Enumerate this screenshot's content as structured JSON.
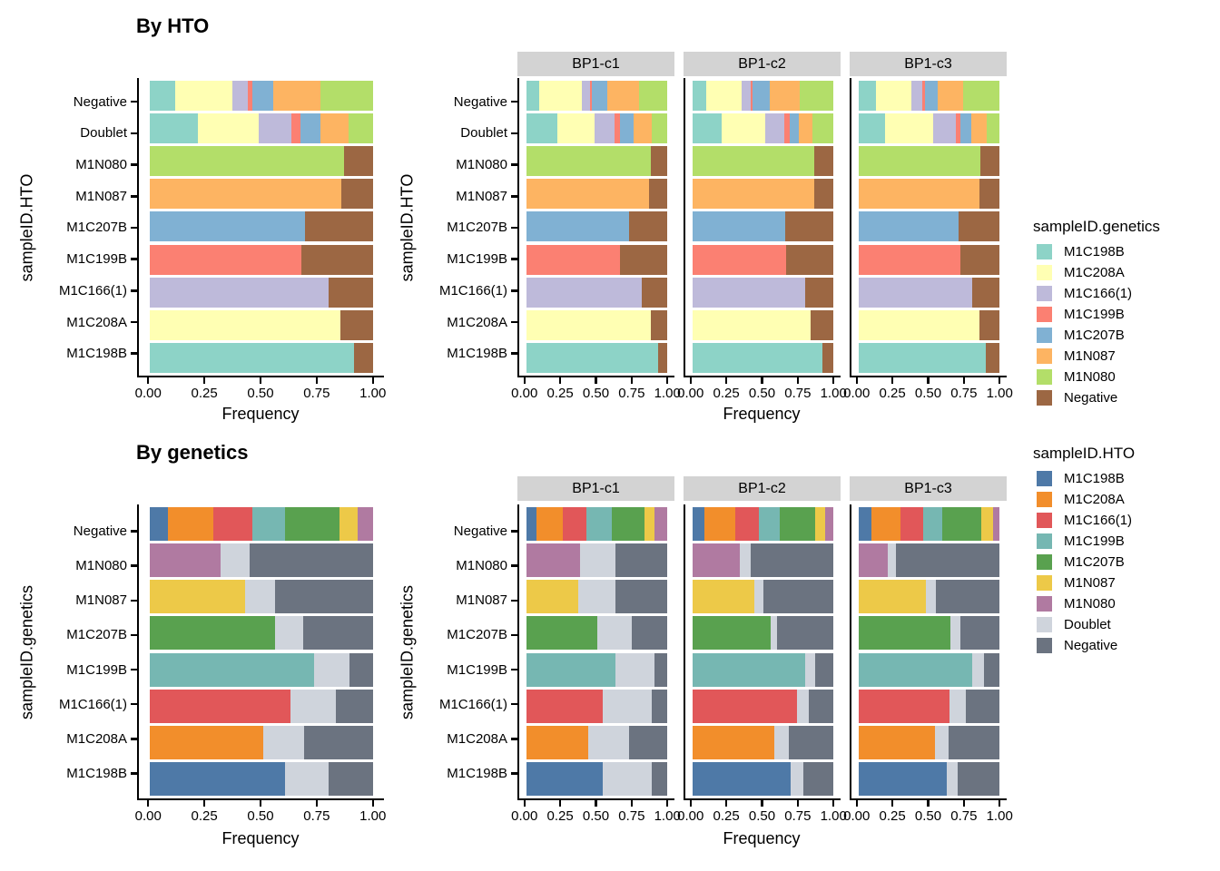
{
  "titles": {
    "top": "By HTO",
    "bottom": "By genetics"
  },
  "axis": {
    "x_label": "Frequency",
    "x_ticks": [
      "0.00",
      "0.25",
      "0.50",
      "0.75",
      "1.00"
    ]
  },
  "palettes": {
    "genetics": {
      "M1C198B": "#8DD3C7",
      "M1C208A": "#FFFFB3",
      "M1C166(1)": "#BEBADA",
      "M1C199B": "#FB8072",
      "M1C207B": "#80B1D3",
      "M1N087": "#FDB462",
      "M1N080": "#B3DE69",
      "Negative": "#9C6743"
    },
    "hto": {
      "M1C198B": "#4E79A7",
      "M1C208A": "#F28E2B",
      "M1C166(1)": "#E15759",
      "M1C199B": "#76B7B2",
      "M1C207B": "#59A14F",
      "M1N087": "#EDC948",
      "M1N080": "#B07AA1",
      "Doublet": "#CFD4DC",
      "Negative": "#6B7380"
    }
  },
  "legends": [
    {
      "title": "sampleID.genetics",
      "palette": "genetics",
      "items": [
        "M1C198B",
        "M1C208A",
        "M1C166(1)",
        "M1C199B",
        "M1C207B",
        "M1N087",
        "M1N080",
        "Negative"
      ]
    },
    {
      "title": "sampleID.HTO",
      "palette": "hto",
      "items": [
        "M1C198B",
        "M1C208A",
        "M1C166(1)",
        "M1C199B",
        "M1C207B",
        "M1N087",
        "M1N080",
        "Doublet",
        "Negative"
      ]
    }
  ],
  "chart_data": [
    {
      "id": "by_hto",
      "type": "bar",
      "orientation": "horizontal",
      "stacked": true,
      "normalized": true,
      "title": "By HTO",
      "ylabel": "sampleID.HTO",
      "xlabel": "Frequency",
      "xlim": [
        0,
        1
      ],
      "x_ticks": [
        0,
        0.25,
        0.5,
        0.75,
        1
      ],
      "stack_palette": "genetics",
      "stack_order": [
        "M1C198B",
        "M1C208A",
        "M1C166(1)",
        "M1C199B",
        "M1C207B",
        "M1N087",
        "M1N080",
        "Negative"
      ],
      "row_categories": [
        "Negative",
        "Doublet",
        "M1N080",
        "M1N087",
        "M1C207B",
        "M1C199B",
        "M1C166(1)",
        "M1C208A",
        "M1C198B"
      ],
      "panels": [
        {
          "facet": null,
          "values": {
            "Negative": {
              "M1C198B": 0.112,
              "M1C208A": 0.259,
              "M1C166(1)": 0.067,
              "M1C199B": 0.02,
              "M1C207B": 0.097,
              "M1N087": 0.21,
              "M1N080": 0.235
            },
            "Doublet": {
              "M1C198B": 0.214,
              "M1C208A": 0.274,
              "M1C166(1)": 0.148,
              "M1C199B": 0.04,
              "M1C207B": 0.089,
              "M1N087": 0.126,
              "M1N080": 0.109
            },
            "M1N080": {
              "M1N080": 0.87,
              "Negative": 0.13
            },
            "M1N087": {
              "M1N087": 0.86,
              "Negative": 0.14
            },
            "M1C207B": {
              "M1C207B": 0.694,
              "Negative": 0.306
            },
            "M1C199B": {
              "M1C199B": 0.68,
              "Negative": 0.32
            },
            "M1C166(1)": {
              "M1C166(1)": 0.8,
              "Negative": 0.2
            },
            "M1C208A": {
              "M1C208A": 0.856,
              "Negative": 0.144
            },
            "M1C198B": {
              "M1C198B": 0.916,
              "Negative": 0.084
            }
          }
        },
        {
          "facet": "BP1-c1",
          "values": {
            "Negative": {
              "M1C198B": 0.091,
              "M1C208A": 0.305,
              "M1C166(1)": 0.053,
              "M1C199B": 0.016,
              "M1C207B": 0.109,
              "M1N087": 0.228,
              "M1N080": 0.198
            },
            "Doublet": {
              "M1C198B": 0.221,
              "M1C208A": 0.262,
              "M1C166(1)": 0.141,
              "M1C199B": 0.037,
              "M1C207B": 0.1,
              "M1N087": 0.125,
              "M1N080": 0.114
            },
            "M1N080": {
              "M1N080": 0.88,
              "Negative": 0.12
            },
            "M1N087": {
              "M1N087": 0.87,
              "Negative": 0.13
            },
            "M1C207B": {
              "M1C207B": 0.73,
              "Negative": 0.27
            },
            "M1C199B": {
              "M1C199B": 0.665,
              "Negative": 0.335
            },
            "M1C166(1)": {
              "M1C166(1)": 0.815,
              "Negative": 0.185
            },
            "M1C208A": {
              "M1C208A": 0.88,
              "Negative": 0.12
            },
            "M1C198B": {
              "M1C198B": 0.935,
              "Negative": 0.065
            }
          }
        },
        {
          "facet": "BP1-c2",
          "values": {
            "Negative": {
              "M1C198B": 0.1,
              "M1C208A": 0.251,
              "M1C166(1)": 0.061,
              "M1C199B": 0.016,
              "M1C207B": 0.12,
              "M1N087": 0.214,
              "M1N080": 0.238
            },
            "Doublet": {
              "M1C198B": 0.208,
              "M1C208A": 0.31,
              "M1C166(1)": 0.131,
              "M1C199B": 0.039,
              "M1C207B": 0.063,
              "M1N087": 0.102,
              "M1N080": 0.147
            },
            "M1N080": {
              "M1N080": 0.865,
              "Negative": 0.135
            },
            "M1N087": {
              "M1N087": 0.86,
              "Negative": 0.14
            },
            "M1C207B": {
              "M1C207B": 0.66,
              "Negative": 0.34
            },
            "M1C199B": {
              "M1C199B": 0.665,
              "Negative": 0.335
            },
            "M1C166(1)": {
              "M1C166(1)": 0.796,
              "Negative": 0.204
            },
            "M1C208A": {
              "M1C208A": 0.835,
              "Negative": 0.165
            },
            "M1C198B": {
              "M1C198B": 0.92,
              "Negative": 0.08
            }
          }
        },
        {
          "facet": "BP1-c3",
          "values": {
            "Negative": {
              "M1C198B": 0.126,
              "M1C208A": 0.249,
              "M1C166(1)": 0.078,
              "M1C199B": 0.018,
              "M1C207B": 0.088,
              "M1N087": 0.184,
              "M1N080": 0.257
            },
            "Doublet": {
              "M1C198B": 0.191,
              "M1C208A": 0.338,
              "M1C166(1)": 0.161,
              "M1C199B": 0.034,
              "M1C207B": 0.074,
              "M1N087": 0.11,
              "M1N080": 0.092
            },
            "M1N080": {
              "M1N080": 0.865,
              "Negative": 0.135
            },
            "M1N087": {
              "M1N087": 0.855,
              "Negative": 0.145
            },
            "M1C207B": {
              "M1C207B": 0.71,
              "Negative": 0.29
            },
            "M1C199B": {
              "M1C199B": 0.72,
              "Negative": 0.28
            },
            "M1C166(1)": {
              "M1C166(1)": 0.805,
              "Negative": 0.195
            },
            "M1C208A": {
              "M1C208A": 0.855,
              "Negative": 0.145
            },
            "M1C198B": {
              "M1C198B": 0.9,
              "Negative": 0.1
            }
          }
        }
      ]
    },
    {
      "id": "by_genetics",
      "type": "bar",
      "orientation": "horizontal",
      "stacked": true,
      "normalized": true,
      "title": "By genetics",
      "ylabel": "sampleID.genetics",
      "xlabel": "Frequency",
      "xlim": [
        0,
        1
      ],
      "x_ticks": [
        0,
        0.25,
        0.5,
        0.75,
        1
      ],
      "stack_palette": "hto",
      "stack_order": [
        "M1C198B",
        "M1C208A",
        "M1C166(1)",
        "M1C199B",
        "M1C207B",
        "M1N087",
        "M1N080",
        "Doublet",
        "Negative"
      ],
      "row_categories": [
        "Negative",
        "M1N080",
        "M1N087",
        "M1C207B",
        "M1C199B",
        "M1C166(1)",
        "M1C208A",
        "M1C198B"
      ],
      "panels": [
        {
          "facet": null,
          "values": {
            "Negative": {
              "M1C198B": 0.081,
              "M1C208A": 0.202,
              "M1C166(1)": 0.175,
              "M1C199B": 0.149,
              "M1C207B": 0.242,
              "M1N087": 0.081,
              "M1N080": 0.07
            },
            "M1N080": {
              "M1N080": 0.317,
              "Doublet": 0.13,
              "Negative": 0.553
            },
            "M1N087": {
              "M1N087": 0.428,
              "Doublet": 0.135,
              "Negative": 0.437
            },
            "M1C207B": {
              "M1C207B": 0.563,
              "Doublet": 0.124,
              "Negative": 0.313
            },
            "M1C199B": {
              "M1C199B": 0.738,
              "Doublet": 0.158,
              "Negative": 0.104
            },
            "M1C166(1)": {
              "M1C166(1)": 0.63,
              "Doublet": 0.205,
              "Negative": 0.165
            },
            "M1C208A": {
              "M1C208A": 0.51,
              "Doublet": 0.18,
              "Negative": 0.31
            },
            "M1C198B": {
              "M1C198B": 0.607,
              "Doublet": 0.193,
              "Negative": 0.2
            }
          }
        },
        {
          "facet": "BP1-c1",
          "values": {
            "Negative": {
              "M1C198B": 0.074,
              "M1C208A": 0.184,
              "M1C166(1)": 0.166,
              "M1C199B": 0.18,
              "M1C207B": 0.233,
              "M1N087": 0.074,
              "M1N080": 0.089
            },
            "M1N080": {
              "M1N080": 0.381,
              "Doublet": 0.25,
              "Negative": 0.369
            },
            "M1N087": {
              "M1N087": 0.371,
              "Doublet": 0.26,
              "Negative": 0.369
            },
            "M1C207B": {
              "M1C207B": 0.504,
              "Doublet": 0.242,
              "Negative": 0.254
            },
            "M1C199B": {
              "M1C199B": 0.631,
              "Doublet": 0.276,
              "Negative": 0.093
            },
            "M1C166(1)": {
              "M1C166(1)": 0.54,
              "Doublet": 0.346,
              "Negative": 0.114
            },
            "M1C208A": {
              "M1C208A": 0.44,
              "Doublet": 0.291,
              "Negative": 0.269
            },
            "M1C198B": {
              "M1C198B": 0.54,
              "Doublet": 0.346,
              "Negative": 0.114
            }
          }
        },
        {
          "facet": "BP1-c2",
          "values": {
            "Negative": {
              "M1C198B": 0.084,
              "M1C208A": 0.217,
              "M1C166(1)": 0.173,
              "M1C199B": 0.147,
              "M1C207B": 0.246,
              "M1N087": 0.076,
              "M1N080": 0.057
            },
            "M1N080": {
              "M1N080": 0.339,
              "Doublet": 0.072,
              "Negative": 0.589
            },
            "M1N087": {
              "M1N087": 0.436,
              "Doublet": 0.069,
              "Negative": 0.495
            },
            "M1C207B": {
              "M1C207B": 0.552,
              "Doublet": 0.048,
              "Negative": 0.4
            },
            "M1C199B": {
              "M1C199B": 0.796,
              "Doublet": 0.071,
              "Negative": 0.133
            },
            "M1C166(1)": {
              "M1C166(1)": 0.743,
              "Doublet": 0.084,
              "Negative": 0.173
            },
            "M1C208A": {
              "M1C208A": 0.579,
              "Doublet": 0.105,
              "Negative": 0.316
            },
            "M1C198B": {
              "M1C198B": 0.695,
              "Doublet": 0.094,
              "Negative": 0.211
            }
          }
        },
        {
          "facet": "BP1-c3",
          "values": {
            "Negative": {
              "M1C198B": 0.095,
              "M1C208A": 0.2,
              "M1C166(1)": 0.162,
              "M1C199B": 0.139,
              "M1C207B": 0.274,
              "M1N087": 0.085,
              "M1N080": 0.045
            },
            "M1N080": {
              "M1N080": 0.206,
              "Doublet": 0.057,
              "Negative": 0.737
            },
            "M1N087": {
              "M1N087": 0.478,
              "Doublet": 0.069,
              "Negative": 0.453
            },
            "M1C207B": {
              "M1C207B": 0.653,
              "Doublet": 0.069,
              "Negative": 0.278
            },
            "M1C199B": {
              "M1C199B": 0.806,
              "Doublet": 0.084,
              "Negative": 0.11
            },
            "M1C166(1)": {
              "M1C166(1)": 0.646,
              "Doublet": 0.112,
              "Negative": 0.242
            },
            "M1C208A": {
              "M1C208A": 0.541,
              "Doublet": 0.097,
              "Negative": 0.362
            },
            "M1C198B": {
              "M1C198B": 0.625,
              "Doublet": 0.075,
              "Negative": 0.3
            }
          }
        }
      ]
    }
  ]
}
